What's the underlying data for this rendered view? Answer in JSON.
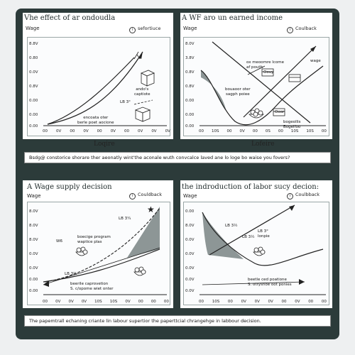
{
  "panels": {
    "top_left": {
      "title": "Vhe effect of ar ondoudla",
      "ylabel": "Wage",
      "chip": "sefortiuce",
      "yticks": [
        "8.8V",
        "0.80",
        "0.0V",
        "0.8V",
        "0.00",
        "0.00",
        "0.00"
      ],
      "xticks": [
        "00",
        "0V",
        "00",
        "0V",
        "00",
        "0V",
        "00",
        "0V",
        "0V",
        "0V"
      ],
      "xlabel": "Loqire",
      "notes": [
        "ando's\ncaptiote",
        "LB 3°",
        "encoata oter\nberle poet aocione"
      ]
    },
    "top_right": {
      "title": "A WF aro un earned income",
      "ylabel": "Wage",
      "chip": "Coulback",
      "yticks": [
        "8.0V",
        "3.8V",
        "0.8V",
        "0.8V",
        "0.00",
        "0.00",
        "0.00"
      ],
      "xticks": [
        "00",
        "10S",
        "00",
        "0V",
        "00",
        "0S",
        "00",
        "10S",
        "10S",
        "00"
      ],
      "xlabel": "Lofeire",
      "notes": [
        "ox meoomre Icome\naf pouth",
        "wage",
        "Oouy",
        "bouaoor oter\nsagph poiee",
        "Ooor",
        "bogeollis\nBogeifoo"
      ]
    },
    "bottom_left": {
      "title": "A Wage supply decision",
      "ylabel": "Wage",
      "chip": "Couldback",
      "yticks": [
        "8.0V",
        "8.0V",
        "8.0V",
        "0.0V",
        "0.0V",
        "0.00",
        "0.00"
      ],
      "xticks": [
        "00",
        "0V",
        "0V",
        "0V",
        "10S",
        "10S",
        "0V",
        "00",
        "00",
        "00"
      ],
      "notes": [
        "LB 3¼",
        "boecige program\nwaptice plas",
        "W6",
        "LB 3¼",
        "beerile caprovetion\nS. c/opome wiet onter"
      ]
    },
    "bottom_right": {
      "title": "the indroduction of labor sucy decion:",
      "ylabel": "Wage",
      "chip": "Coulbback",
      "yticks": [
        "0.00",
        "8.0V",
        "0.0V",
        "0.0V",
        "0.0V",
        "0.0V",
        "0.0V"
      ],
      "xticks": [
        "00",
        "10S",
        "00",
        "0V",
        "0V",
        "0V",
        "00",
        "0V",
        "00",
        "00"
      ],
      "notes": [
        "LB 3½",
        "LB 3½",
        "LB 3°\nlonpie",
        "beetle ced poatione\nS. otrysnoe oot ponies"
      ]
    }
  },
  "captions": {
    "middle": "Bsdg@ constorice shorare ther aeonatly wint'the aconale wuth convcalce laved ane lo loge bo waise you fovers?",
    "bottom": "The papemtrall echaning criante lin labour supertior the paperttcial chrangehge in labbour decision."
  },
  "icons": [
    "box-icon",
    "bowl-icon",
    "star-icon"
  ],
  "colors": {
    "frame": "#2c3b3a",
    "panel": "#ffffff",
    "shade": "#8d9696",
    "line": "#222222"
  }
}
